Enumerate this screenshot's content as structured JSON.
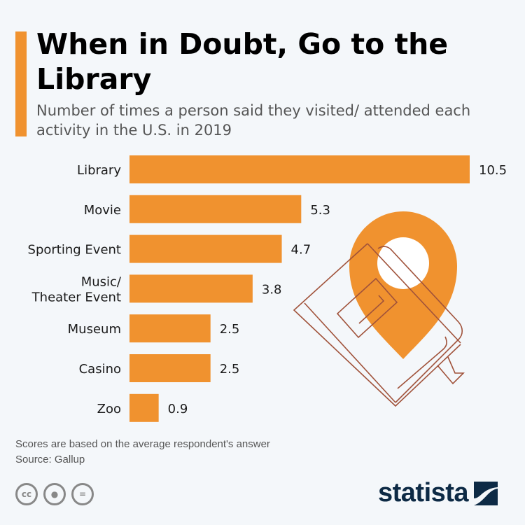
{
  "title": "When in Doubt, Go to the Library",
  "subtitle": "Number of times a person said they visited/ attended each activity in the U.S. in 2019",
  "footer": {
    "note": "Scores are based on the average respondent's answer",
    "source": "Source: Gallup",
    "brand": "statista",
    "cc_label": "cc"
  },
  "colors": {
    "bar": "#f0922f",
    "background": "#f4f7fa",
    "book": "#a0523a",
    "brand": "#0d2a45"
  },
  "chart_data": {
    "type": "bar",
    "orientation": "horizontal",
    "title": "When in Doubt, Go to the Library",
    "categories": [
      "Library",
      "Movie",
      "Sporting Event",
      "Music/\nTheater Event",
      "Museum",
      "Casino",
      "Zoo"
    ],
    "values": [
      10.5,
      5.3,
      4.7,
      3.8,
      2.5,
      2.5,
      0.9
    ],
    "xlabel": "",
    "ylabel": "",
    "xlim": [
      0,
      10.5
    ],
    "grid": false,
    "legend": "none"
  }
}
